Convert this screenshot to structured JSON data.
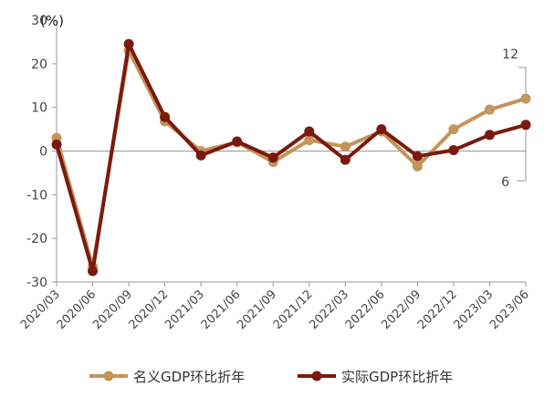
{
  "chart_data": {
    "type": "line",
    "unit_label": "(%)",
    "ylim": [
      -30,
      30
    ],
    "yticks": [
      30,
      20,
      10,
      0,
      -10,
      -20,
      -30
    ],
    "categories": [
      "2020/03",
      "2020/06",
      "2020/09",
      "2020/12",
      "2021/03",
      "2021/06",
      "2021/09",
      "2021/12",
      "2022/03",
      "2022/06",
      "2022/09",
      "2022/12",
      "2023/03",
      "2023/06"
    ],
    "series": [
      {
        "name": "名义GDP环比折年",
        "color": "#c4945a",
        "values": [
          3.0,
          -26.5,
          23.0,
          6.8,
          0.0,
          2.0,
          -2.5,
          2.5,
          1.0,
          4.5,
          -3.5,
          5.0,
          9.5,
          12.0
        ]
      },
      {
        "name": "实际GDP环比折年",
        "color": "#7a1a0d",
        "values": [
          1.5,
          -27.5,
          24.5,
          7.8,
          -1.0,
          2.2,
          -1.5,
          4.5,
          -2.0,
          5.0,
          -1.2,
          0.2,
          3.7,
          6.0
        ]
      }
    ],
    "annotations": [
      {
        "text": "12",
        "series": 0,
        "index": 13
      },
      {
        "text": "6",
        "series": 1,
        "index": 13
      }
    ],
    "grid": false,
    "legend": "bottom"
  }
}
